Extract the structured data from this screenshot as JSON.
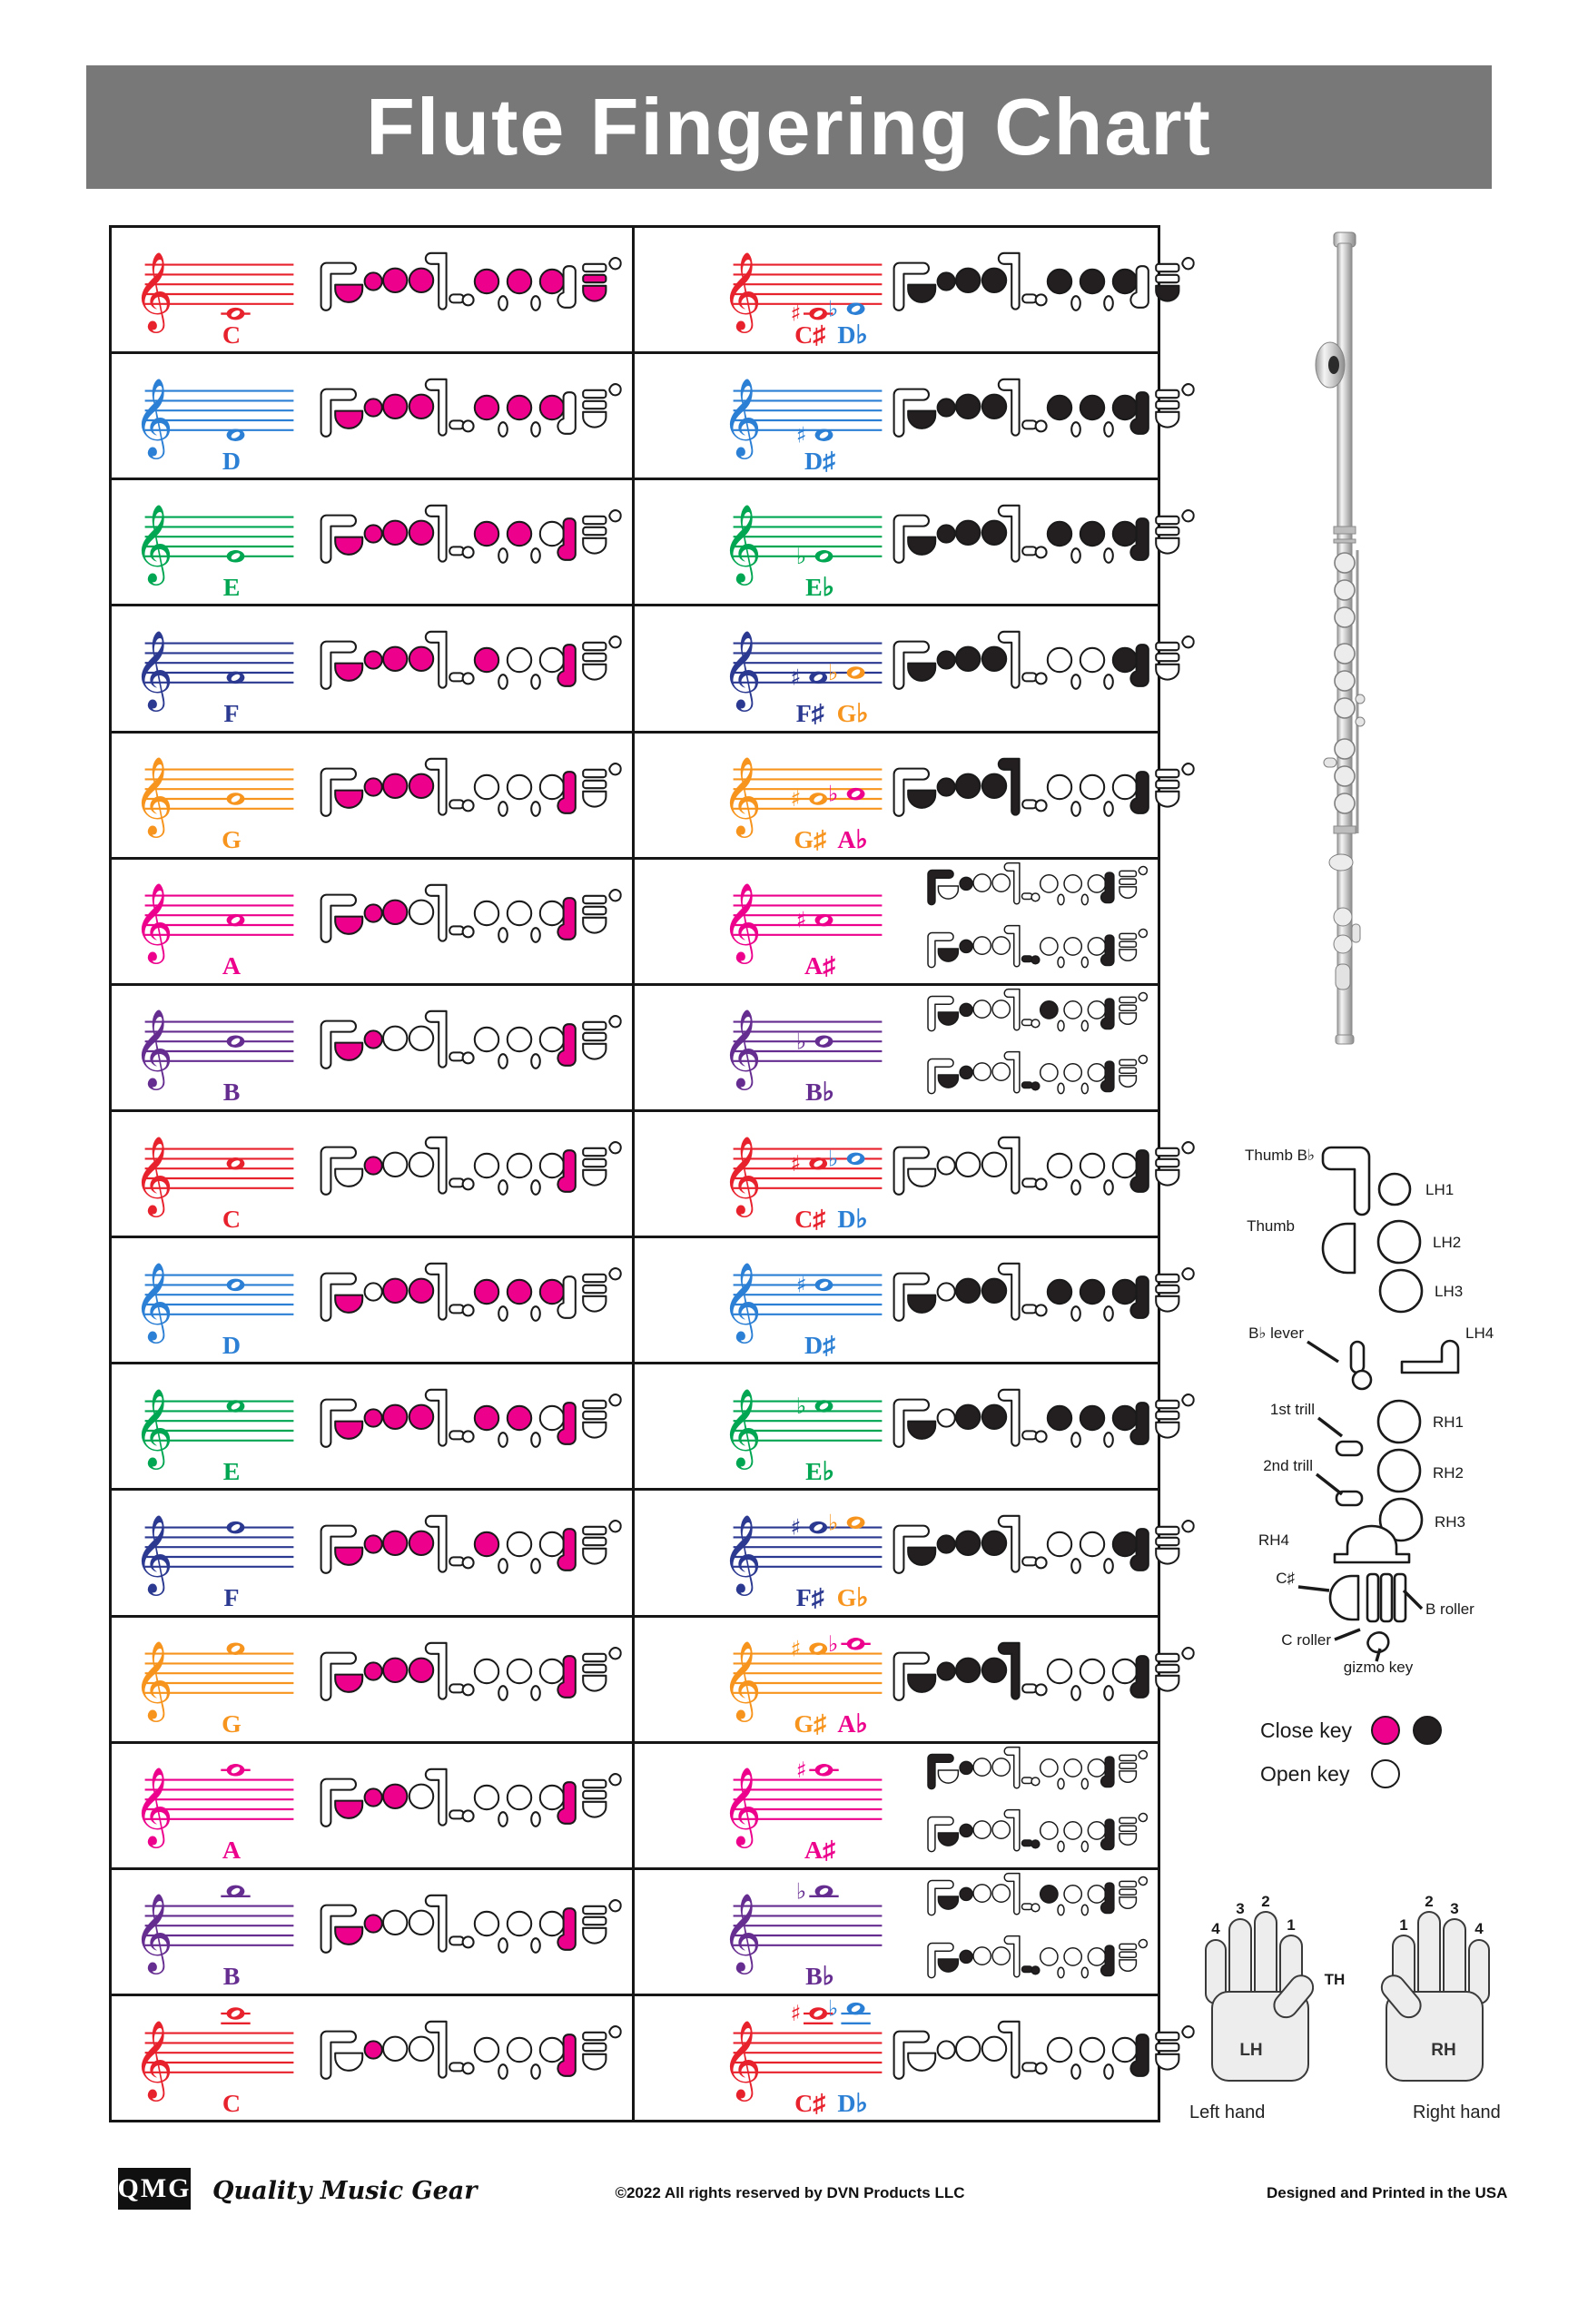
{
  "title": "Flute Fingering Chart",
  "colors": {
    "accent_pink": "#EC008C",
    "key_black": "#231F20",
    "outline": "#1a1a1a",
    "title_bg": "#787878",
    "red": "#E8222D",
    "blue": "#2B7FD4",
    "green": "#00A651",
    "navy": "#2B3990",
    "orange": "#F7941D",
    "magenta": "#EC008C",
    "purple": "#662D91"
  },
  "legend": {
    "close_label": "Close key",
    "open_label": "Open key"
  },
  "key_guide": {
    "labels": [
      "Thumb B♭",
      "Thumb",
      "B♭ lever",
      "1st trill",
      "2nd trill",
      "RH4",
      "C♯",
      "C roller",
      "LH1",
      "LH2",
      "LH3",
      "LH4",
      "RH1",
      "RH2",
      "RH3",
      "B roller",
      "gizmo key"
    ]
  },
  "hands": {
    "lh": "LH",
    "rh": "RH",
    "th": "TH",
    "lh_fingers": [
      "4",
      "3",
      "2",
      "1"
    ],
    "rh_fingers": [
      "1",
      "2",
      "3",
      "4"
    ],
    "left_caption": "Left hand",
    "right_caption": "Right hand"
  },
  "footer": {
    "logo": "QMG",
    "tagline": "Quality Music Gear",
    "copyright": "©2022 All rights reserved by DVN Products LLC",
    "made": "Designed and Printed in the USA"
  },
  "rows": [
    {
      "natural": {
        "label": "C",
        "color": "red",
        "step": 0,
        "fingerings": [
          [
            "th",
            "l1",
            "l2",
            "l3",
            "r1",
            "r2",
            "r3",
            "cr",
            "cs"
          ]
        ]
      },
      "accidental": {
        "staff_color": "red",
        "notes": [
          {
            "step": 0,
            "acc": "♯",
            "color": "red"
          },
          {
            "step": 1,
            "acc": "♭",
            "color": "blue"
          }
        ],
        "labels": [
          {
            "text": "C♯",
            "color": "red"
          },
          {
            "text": "D♭",
            "color": "blue"
          }
        ],
        "fingerings": [
          [
            "th",
            "l1",
            "l2",
            "l3",
            "r1",
            "r2",
            "r3",
            "cs"
          ]
        ]
      }
    },
    {
      "natural": {
        "label": "D",
        "color": "blue",
        "step": 1,
        "fingerings": [
          [
            "th",
            "l1",
            "l2",
            "l3",
            "r1",
            "r2",
            "r3"
          ]
        ]
      },
      "accidental": {
        "staff_color": "blue",
        "notes": [
          {
            "step": 1,
            "acc": "♯",
            "color": "blue"
          }
        ],
        "labels": [
          {
            "text": "D♯",
            "color": "blue"
          }
        ],
        "fingerings": [
          [
            "th",
            "l1",
            "l2",
            "l3",
            "r1",
            "r2",
            "r3",
            "r4"
          ]
        ]
      }
    },
    {
      "natural": {
        "label": "E",
        "color": "green",
        "step": 2,
        "fingerings": [
          [
            "th",
            "l1",
            "l2",
            "l3",
            "r1",
            "r2",
            "r4"
          ]
        ]
      },
      "accidental": {
        "staff_color": "green",
        "notes": [
          {
            "step": 2,
            "acc": "♭",
            "color": "green"
          }
        ],
        "labels": [
          {
            "text": "E♭",
            "color": "green"
          }
        ],
        "fingerings": [
          [
            "th",
            "l1",
            "l2",
            "l3",
            "r1",
            "r2",
            "r3",
            "r4"
          ]
        ]
      }
    },
    {
      "natural": {
        "label": "F",
        "color": "navy",
        "step": 3,
        "fingerings": [
          [
            "th",
            "l1",
            "l2",
            "l3",
            "r1",
            "r4"
          ]
        ]
      },
      "accidental": {
        "staff_color": "navy",
        "notes": [
          {
            "step": 3,
            "acc": "♯",
            "color": "navy"
          },
          {
            "step": 4,
            "acc": "♭",
            "color": "orange"
          }
        ],
        "labels": [
          {
            "text": "F♯",
            "color": "navy"
          },
          {
            "text": "G♭",
            "color": "orange"
          }
        ],
        "fingerings": [
          [
            "th",
            "l1",
            "l2",
            "l3",
            "r3",
            "r4"
          ]
        ]
      }
    },
    {
      "natural": {
        "label": "G",
        "color": "orange",
        "step": 4,
        "fingerings": [
          [
            "th",
            "l1",
            "l2",
            "l3",
            "r4"
          ]
        ]
      },
      "accidental": {
        "staff_color": "orange",
        "notes": [
          {
            "step": 4,
            "acc": "♯",
            "color": "orange"
          },
          {
            "step": 5,
            "acc": "♭",
            "color": "magenta"
          }
        ],
        "labels": [
          {
            "text": "G♯",
            "color": "orange"
          },
          {
            "text": "A♭",
            "color": "magenta"
          }
        ],
        "fingerings": [
          [
            "th",
            "l1",
            "l2",
            "l3",
            "l4",
            "r4"
          ]
        ]
      }
    },
    {
      "natural": {
        "label": "A",
        "color": "magenta",
        "step": 5,
        "fingerings": [
          [
            "th",
            "l1",
            "l2",
            "r4"
          ]
        ]
      },
      "accidental": {
        "staff_color": "magenta",
        "notes": [
          {
            "step": 5,
            "acc": "♯",
            "color": "magenta"
          }
        ],
        "labels": [
          {
            "text": "A♯",
            "color": "magenta"
          }
        ],
        "fingerings": [
          [
            "tbb",
            "l1",
            "r4"
          ],
          [
            "th",
            "l1",
            "bl",
            "r4"
          ]
        ]
      }
    },
    {
      "natural": {
        "label": "B",
        "color": "purple",
        "step": 6,
        "fingerings": [
          [
            "th",
            "l1",
            "r4"
          ]
        ]
      },
      "accidental": {
        "staff_color": "purple",
        "notes": [
          {
            "step": 6,
            "acc": "♭",
            "color": "purple"
          }
        ],
        "labels": [
          {
            "text": "B♭",
            "color": "purple"
          }
        ],
        "fingerings": [
          [
            "th",
            "l1",
            "r1",
            "r4"
          ],
          [
            "th",
            "l1",
            "bl",
            "r4"
          ]
        ]
      }
    },
    {
      "natural": {
        "label": "C",
        "color": "red",
        "step": 7,
        "fingerings": [
          [
            "l1",
            "r4"
          ]
        ]
      },
      "accidental": {
        "staff_color": "red",
        "notes": [
          {
            "step": 7,
            "acc": "♯",
            "color": "red"
          },
          {
            "step": 8,
            "acc": "♭",
            "color": "blue"
          }
        ],
        "labels": [
          {
            "text": "C♯",
            "color": "red"
          },
          {
            "text": "D♭",
            "color": "blue"
          }
        ],
        "fingerings": [
          [
            "r4"
          ]
        ]
      }
    },
    {
      "natural": {
        "label": "D",
        "color": "blue",
        "step": 8,
        "fingerings": [
          [
            "th",
            "l2",
            "l3",
            "r1",
            "r2",
            "r3"
          ]
        ]
      },
      "accidental": {
        "staff_color": "blue",
        "notes": [
          {
            "step": 8,
            "acc": "♯",
            "color": "blue"
          }
        ],
        "labels": [
          {
            "text": "D♯",
            "color": "blue"
          }
        ],
        "fingerings": [
          [
            "th",
            "l2",
            "l3",
            "r1",
            "r2",
            "r3",
            "r4"
          ]
        ]
      }
    },
    {
      "natural": {
        "label": "E",
        "color": "green",
        "step": 9,
        "fingerings": [
          [
            "th",
            "l1",
            "l2",
            "l3",
            "r1",
            "r2",
            "r4"
          ]
        ]
      },
      "accidental": {
        "staff_color": "green",
        "notes": [
          {
            "step": 9,
            "acc": "♭",
            "color": "green"
          }
        ],
        "labels": [
          {
            "text": "E♭",
            "color": "green"
          }
        ],
        "fingerings": [
          [
            "th",
            "l2",
            "l3",
            "r1",
            "r2",
            "r3",
            "r4"
          ]
        ]
      }
    },
    {
      "natural": {
        "label": "F",
        "color": "navy",
        "step": 10,
        "fingerings": [
          [
            "th",
            "l1",
            "l2",
            "l3",
            "r1",
            "r4"
          ]
        ]
      },
      "accidental": {
        "staff_color": "navy",
        "notes": [
          {
            "step": 10,
            "acc": "♯",
            "color": "navy"
          },
          {
            "step": 11,
            "acc": "♭",
            "color": "orange"
          }
        ],
        "labels": [
          {
            "text": "F♯",
            "color": "navy"
          },
          {
            "text": "G♭",
            "color": "orange"
          }
        ],
        "fingerings": [
          [
            "th",
            "l1",
            "l2",
            "l3",
            "r3",
            "r4"
          ]
        ]
      }
    },
    {
      "natural": {
        "label": "G",
        "color": "orange",
        "step": 11,
        "fingerings": [
          [
            "th",
            "l1",
            "l2",
            "l3",
            "r4"
          ]
        ]
      },
      "accidental": {
        "staff_color": "orange",
        "notes": [
          {
            "step": 11,
            "acc": "♯",
            "color": "orange"
          },
          {
            "step": 12,
            "acc": "♭",
            "color": "magenta"
          }
        ],
        "labels": [
          {
            "text": "G♯",
            "color": "orange"
          },
          {
            "text": "A♭",
            "color": "magenta"
          }
        ],
        "fingerings": [
          [
            "th",
            "l1",
            "l2",
            "l3",
            "l4",
            "r4"
          ]
        ]
      }
    },
    {
      "natural": {
        "label": "A",
        "color": "magenta",
        "step": 12,
        "fingerings": [
          [
            "th",
            "l1",
            "l2",
            "r4"
          ]
        ]
      },
      "accidental": {
        "staff_color": "magenta",
        "notes": [
          {
            "step": 12,
            "acc": "♯",
            "color": "magenta"
          }
        ],
        "labels": [
          {
            "text": "A♯",
            "color": "magenta"
          }
        ],
        "fingerings": [
          [
            "tbb",
            "l1",
            "r4"
          ],
          [
            "th",
            "l1",
            "bl",
            "r4"
          ]
        ]
      }
    },
    {
      "natural": {
        "label": "B",
        "color": "purple",
        "step": 13,
        "fingerings": [
          [
            "th",
            "l1",
            "r4"
          ]
        ]
      },
      "accidental": {
        "staff_color": "purple",
        "notes": [
          {
            "step": 13,
            "acc": "♭",
            "color": "purple"
          }
        ],
        "labels": [
          {
            "text": "B♭",
            "color": "purple"
          }
        ],
        "fingerings": [
          [
            "th",
            "l1",
            "r1",
            "r4"
          ],
          [
            "th",
            "l1",
            "bl",
            "r4"
          ]
        ]
      }
    },
    {
      "natural": {
        "label": "C",
        "color": "red",
        "step": 14,
        "fingerings": [
          [
            "l1",
            "r4"
          ]
        ]
      },
      "accidental": {
        "staff_color": "red",
        "notes": [
          {
            "step": 14,
            "acc": "♯",
            "color": "red"
          },
          {
            "step": 15,
            "acc": "♭",
            "color": "blue"
          }
        ],
        "labels": [
          {
            "text": "C♯",
            "color": "red"
          },
          {
            "text": "D♭",
            "color": "blue"
          }
        ],
        "fingerings": [
          [
            "r4"
          ]
        ]
      }
    }
  ]
}
